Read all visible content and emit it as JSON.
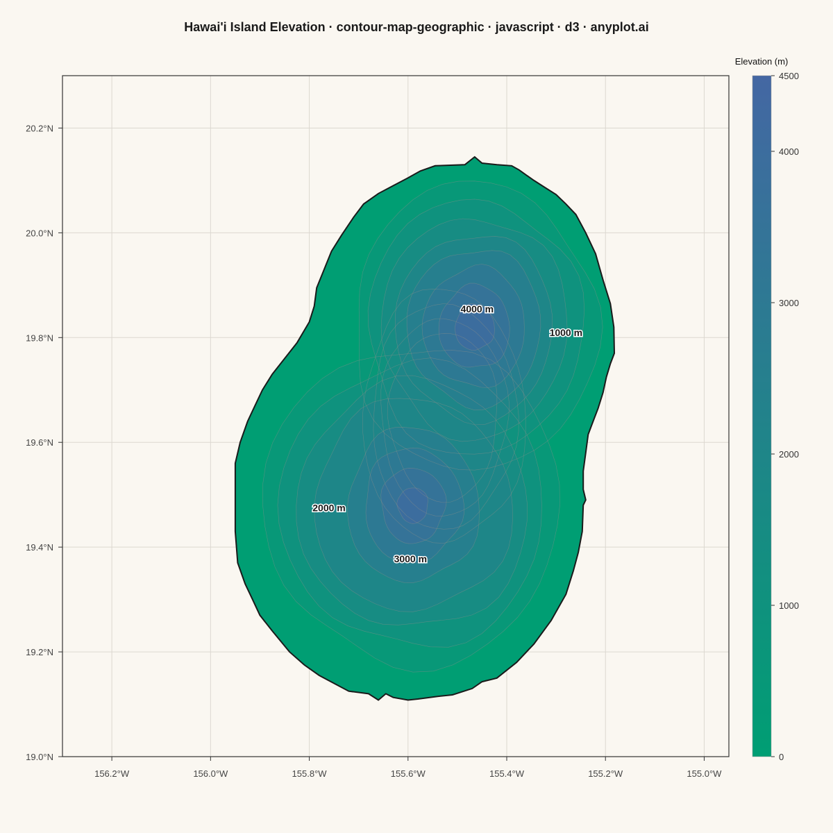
{
  "title": "Hawai'i Island Elevation · contour-map-geographic · javascript · d3 · anyplot.ai",
  "chart_data": {
    "type": "heatmap",
    "subtype": "geographic contour map",
    "title": "Hawai'i Island Elevation · contour-map-geographic · javascript · d3 · anyplot.ai",
    "xlim": [
      -156.3,
      -154.95
    ],
    "ylim": [
      19.0,
      20.3
    ],
    "x_ticks": [
      {
        "value": -156.2,
        "label": "156.2°W"
      },
      {
        "value": -156.0,
        "label": "156.0°W"
      },
      {
        "value": -155.8,
        "label": "155.8°W"
      },
      {
        "value": -155.6,
        "label": "155.6°W"
      },
      {
        "value": -155.4,
        "label": "155.4°W"
      },
      {
        "value": -155.2,
        "label": "155.2°W"
      },
      {
        "value": -155.0,
        "label": "155.0°W"
      }
    ],
    "y_ticks": [
      {
        "value": 19.0,
        "label": "19.0°N"
      },
      {
        "value": 19.2,
        "label": "19.2°N"
      },
      {
        "value": 19.4,
        "label": "19.4°N"
      },
      {
        "value": 19.6,
        "label": "19.6°N"
      },
      {
        "value": 19.8,
        "label": "19.8°N"
      },
      {
        "value": 20.0,
        "label": "20.0°N"
      },
      {
        "value": 20.2,
        "label": "20.2°N"
      }
    ],
    "grid": true,
    "colorbar": {
      "title": "Elevation (m)",
      "range": [
        0,
        4500
      ],
      "ticks": [
        0,
        1000,
        2000,
        3000,
        4000,
        4500
      ],
      "color_low": "#009E73",
      "color_high": "#4467A3",
      "placement": "right"
    },
    "peaks": [
      {
        "name_hint": "north",
        "lon": -155.465,
        "lat": 19.82,
        "elevation": 4250
      },
      {
        "name_hint": "south",
        "lon": -155.59,
        "lat": 19.48,
        "elevation": 4100
      }
    ],
    "contour_interval": 500,
    "contour_labels": [
      {
        "text": "4000 m",
        "lon": -155.46,
        "lat": 19.855
      },
      {
        "text": "1000 m",
        "lon": -155.28,
        "lat": 19.81
      },
      {
        "text": "2000 m",
        "lon": -155.76,
        "lat": 19.475
      },
      {
        "text": "3000 m",
        "lon": -155.595,
        "lat": 19.378
      }
    ],
    "coastline": [
      [
        -155.485,
        20.13
      ],
      [
        -155.465,
        20.145
      ],
      [
        -155.45,
        20.133
      ],
      [
        -155.42,
        20.13
      ],
      [
        -155.39,
        20.128
      ],
      [
        -155.375,
        20.12
      ],
      [
        -155.36,
        20.11
      ],
      [
        -155.345,
        20.1
      ],
      [
        -155.325,
        20.088
      ],
      [
        -155.3,
        20.073
      ],
      [
        -155.28,
        20.055
      ],
      [
        -155.26,
        20.035
      ],
      [
        -155.24,
        20.0
      ],
      [
        -155.22,
        19.96
      ],
      [
        -155.205,
        19.91
      ],
      [
        -155.19,
        19.865
      ],
      [
        -155.183,
        19.82
      ],
      [
        -155.182,
        19.77
      ],
      [
        -155.19,
        19.75
      ],
      [
        -155.198,
        19.725
      ],
      [
        -155.205,
        19.695
      ],
      [
        -155.215,
        19.665
      ],
      [
        -155.225,
        19.64
      ],
      [
        -155.235,
        19.615
      ],
      [
        -155.24,
        19.58
      ],
      [
        -155.245,
        19.545
      ],
      [
        -155.245,
        19.51
      ],
      [
        -155.24,
        19.49
      ],
      [
        -155.245,
        19.48
      ],
      [
        -155.247,
        19.43
      ],
      [
        -155.255,
        19.39
      ],
      [
        -155.265,
        19.355
      ],
      [
        -155.28,
        19.31
      ],
      [
        -155.31,
        19.26
      ],
      [
        -155.345,
        19.215
      ],
      [
        -155.38,
        19.18
      ],
      [
        -155.42,
        19.15
      ],
      [
        -155.45,
        19.143
      ],
      [
        -155.47,
        19.13
      ],
      [
        -155.51,
        19.118
      ],
      [
        -155.54,
        19.115
      ],
      [
        -155.58,
        19.11
      ],
      [
        -155.6,
        19.108
      ],
      [
        -155.63,
        19.113
      ],
      [
        -155.645,
        19.12
      ],
      [
        -155.66,
        19.108
      ],
      [
        -155.68,
        19.12
      ],
      [
        -155.72,
        19.125
      ],
      [
        -155.75,
        19.14
      ],
      [
        -155.78,
        19.155
      ],
      [
        -155.81,
        19.175
      ],
      [
        -155.84,
        19.2
      ],
      [
        -155.875,
        19.24
      ],
      [
        -155.9,
        19.27
      ],
      [
        -155.915,
        19.3
      ],
      [
        -155.93,
        19.33
      ],
      [
        -155.945,
        19.37
      ],
      [
        -155.95,
        19.43
      ],
      [
        -155.95,
        19.5
      ],
      [
        -155.95,
        19.56
      ],
      [
        -155.94,
        19.6
      ],
      [
        -155.925,
        19.64
      ],
      [
        -155.91,
        19.67
      ],
      [
        -155.895,
        19.7
      ],
      [
        -155.875,
        19.73
      ],
      [
        -155.85,
        19.76
      ],
      [
        -155.825,
        19.79
      ],
      [
        -155.8,
        19.83
      ],
      [
        -155.79,
        19.86
      ],
      [
        -155.785,
        19.895
      ],
      [
        -155.77,
        19.93
      ],
      [
        -155.755,
        19.965
      ],
      [
        -155.735,
        19.995
      ],
      [
        -155.71,
        20.03
      ],
      [
        -155.69,
        20.055
      ],
      [
        -155.66,
        20.075
      ],
      [
        -155.63,
        20.09
      ],
      [
        -155.6,
        20.105
      ],
      [
        -155.575,
        20.118
      ],
      [
        -155.545,
        20.128
      ]
    ]
  }
}
